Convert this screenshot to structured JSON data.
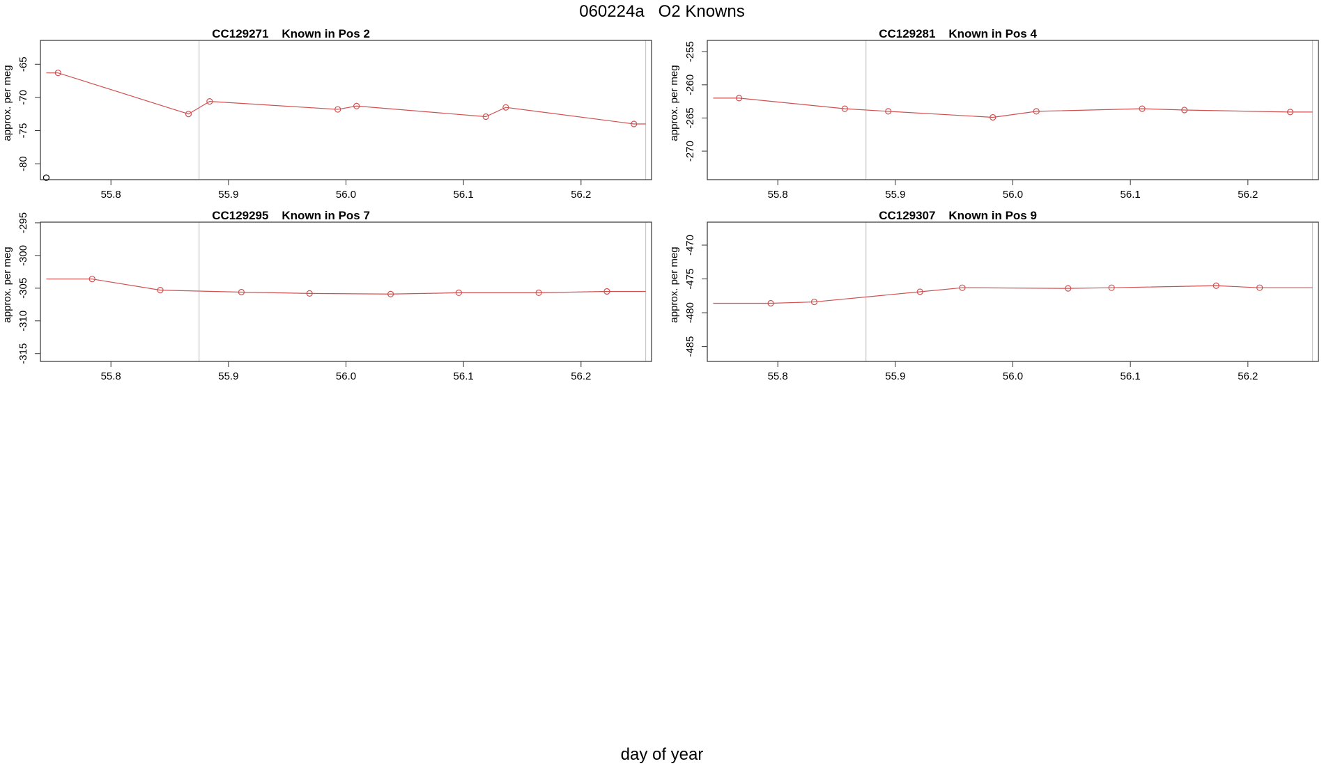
{
  "figure": {
    "title": "060224a   O2 Knowns",
    "xlabel": "day of year"
  },
  "chart_data": [
    {
      "type": "line",
      "title": "CC129271    Known in Pos 2",
      "ylabel": "approx. per meg",
      "xlim": [
        55.74,
        56.26
      ],
      "ylim": [
        -82.4,
        -61.4
      ],
      "xticks": [
        55.8,
        55.9,
        56.0,
        56.1,
        56.2
      ],
      "xtick_labels": [
        "55.8",
        "55.9",
        "56.0",
        "56.1",
        "56.2"
      ],
      "yticks": [
        -80,
        -75,
        -70,
        -65
      ],
      "ytick_labels": [
        "-80",
        "-75",
        "-70",
        "-65"
      ],
      "vlines": [
        55.875,
        56.255
      ],
      "series": [
        {
          "color": "#d05050",
          "x": [
            55.755,
            55.866,
            55.884,
            55.993,
            56.009,
            56.119,
            56.136,
            56.245
          ],
          "y": [
            -66.3,
            -72.5,
            -70.6,
            -71.8,
            -71.3,
            -72.9,
            -71.5,
            -74.0
          ]
        }
      ],
      "step_segments": [
        [
          55.745,
          55.755,
          -66.3
        ]
      ],
      "step_end": [
        56.245,
        56.255,
        -74.0
      ],
      "outliers": [
        {
          "x": 55.745,
          "y": -82.1,
          "color": "#000000"
        }
      ]
    },
    {
      "type": "line",
      "title": "CC129281    Known in Pos 4",
      "ylabel": "approx. per meg",
      "xlim": [
        55.74,
        56.26
      ],
      "ylim": [
        -274.3,
        -253.3
      ],
      "xticks": [
        55.8,
        55.9,
        56.0,
        56.1,
        56.2
      ],
      "xtick_labels": [
        "55.8",
        "55.9",
        "56.0",
        "56.1",
        "56.2"
      ],
      "yticks": [
        -270,
        -265,
        -260,
        -255
      ],
      "ytick_labels": [
        "-270",
        "-265",
        "-260",
        "-255"
      ],
      "vlines": [
        55.875,
        56.255
      ],
      "series": [
        {
          "color": "#d05050",
          "x": [
            55.767,
            55.857,
            55.894,
            55.983,
            56.02,
            56.11,
            56.146,
            56.236
          ],
          "y": [
            -262.0,
            -263.6,
            -264.0,
            -264.9,
            -264.0,
            -263.6,
            -263.8,
            -264.1
          ]
        }
      ],
      "step_segments": [
        [
          55.745,
          55.767,
          -262.0
        ]
      ],
      "step_end": [
        56.236,
        56.255,
        -264.1
      ],
      "outliers": []
    },
    {
      "type": "line",
      "title": "CC129295    Known in Pos 7",
      "ylabel": "approx. per meg",
      "xlim": [
        55.74,
        56.26
      ],
      "ylim": [
        -316.2,
        -294.9
      ],
      "xticks": [
        55.8,
        55.9,
        56.0,
        56.1,
        56.2
      ],
      "xtick_labels": [
        "55.8",
        "55.9",
        "56.0",
        "56.1",
        "56.2"
      ],
      "yticks": [
        -315,
        -310,
        -305,
        -300,
        -295
      ],
      "ytick_labels": [
        "-315",
        "-310",
        "-305",
        "-300",
        "-295"
      ],
      "vlines": [
        55.875,
        56.255
      ],
      "series": [
        {
          "color": "#d05050",
          "x": [
            55.784,
            55.842,
            55.911,
            55.969,
            56.038,
            56.096,
            56.164,
            56.222
          ],
          "y": [
            -303.6,
            -305.3,
            -305.6,
            -305.8,
            -305.9,
            -305.7,
            -305.7,
            -305.5
          ]
        }
      ],
      "step_segments": [
        [
          55.745,
          55.784,
          -303.6
        ]
      ],
      "step_end": [
        56.222,
        56.255,
        -305.5
      ],
      "outliers": []
    },
    {
      "type": "line",
      "title": "CC129307    Known in Pos 9",
      "ylabel": "approx. per meg",
      "xlim": [
        55.74,
        56.26
      ],
      "ylim": [
        -487.2,
        -466.6
      ],
      "xticks": [
        55.8,
        55.9,
        56.0,
        56.1,
        56.2
      ],
      "xtick_labels": [
        "55.8",
        "55.9",
        "56.0",
        "56.1",
        "56.2"
      ],
      "yticks": [
        -485,
        -480,
        -475,
        -470
      ],
      "ytick_labels": [
        "-485",
        "-480",
        "-475",
        "-470"
      ],
      "vlines": [
        55.875,
        56.255
      ],
      "series": [
        {
          "color": "#d05050",
          "x": [
            55.794,
            55.831,
            55.921,
            55.957,
            56.047,
            56.084,
            56.173,
            56.21
          ],
          "y": [
            -478.6,
            -478.4,
            -476.9,
            -476.3,
            -476.4,
            -476.3,
            -476.0,
            -476.3
          ]
        }
      ],
      "step_segments": [
        [
          55.745,
          55.794,
          -478.6
        ]
      ],
      "step_end": [
        56.21,
        56.255,
        -476.3
      ],
      "outliers": []
    }
  ]
}
